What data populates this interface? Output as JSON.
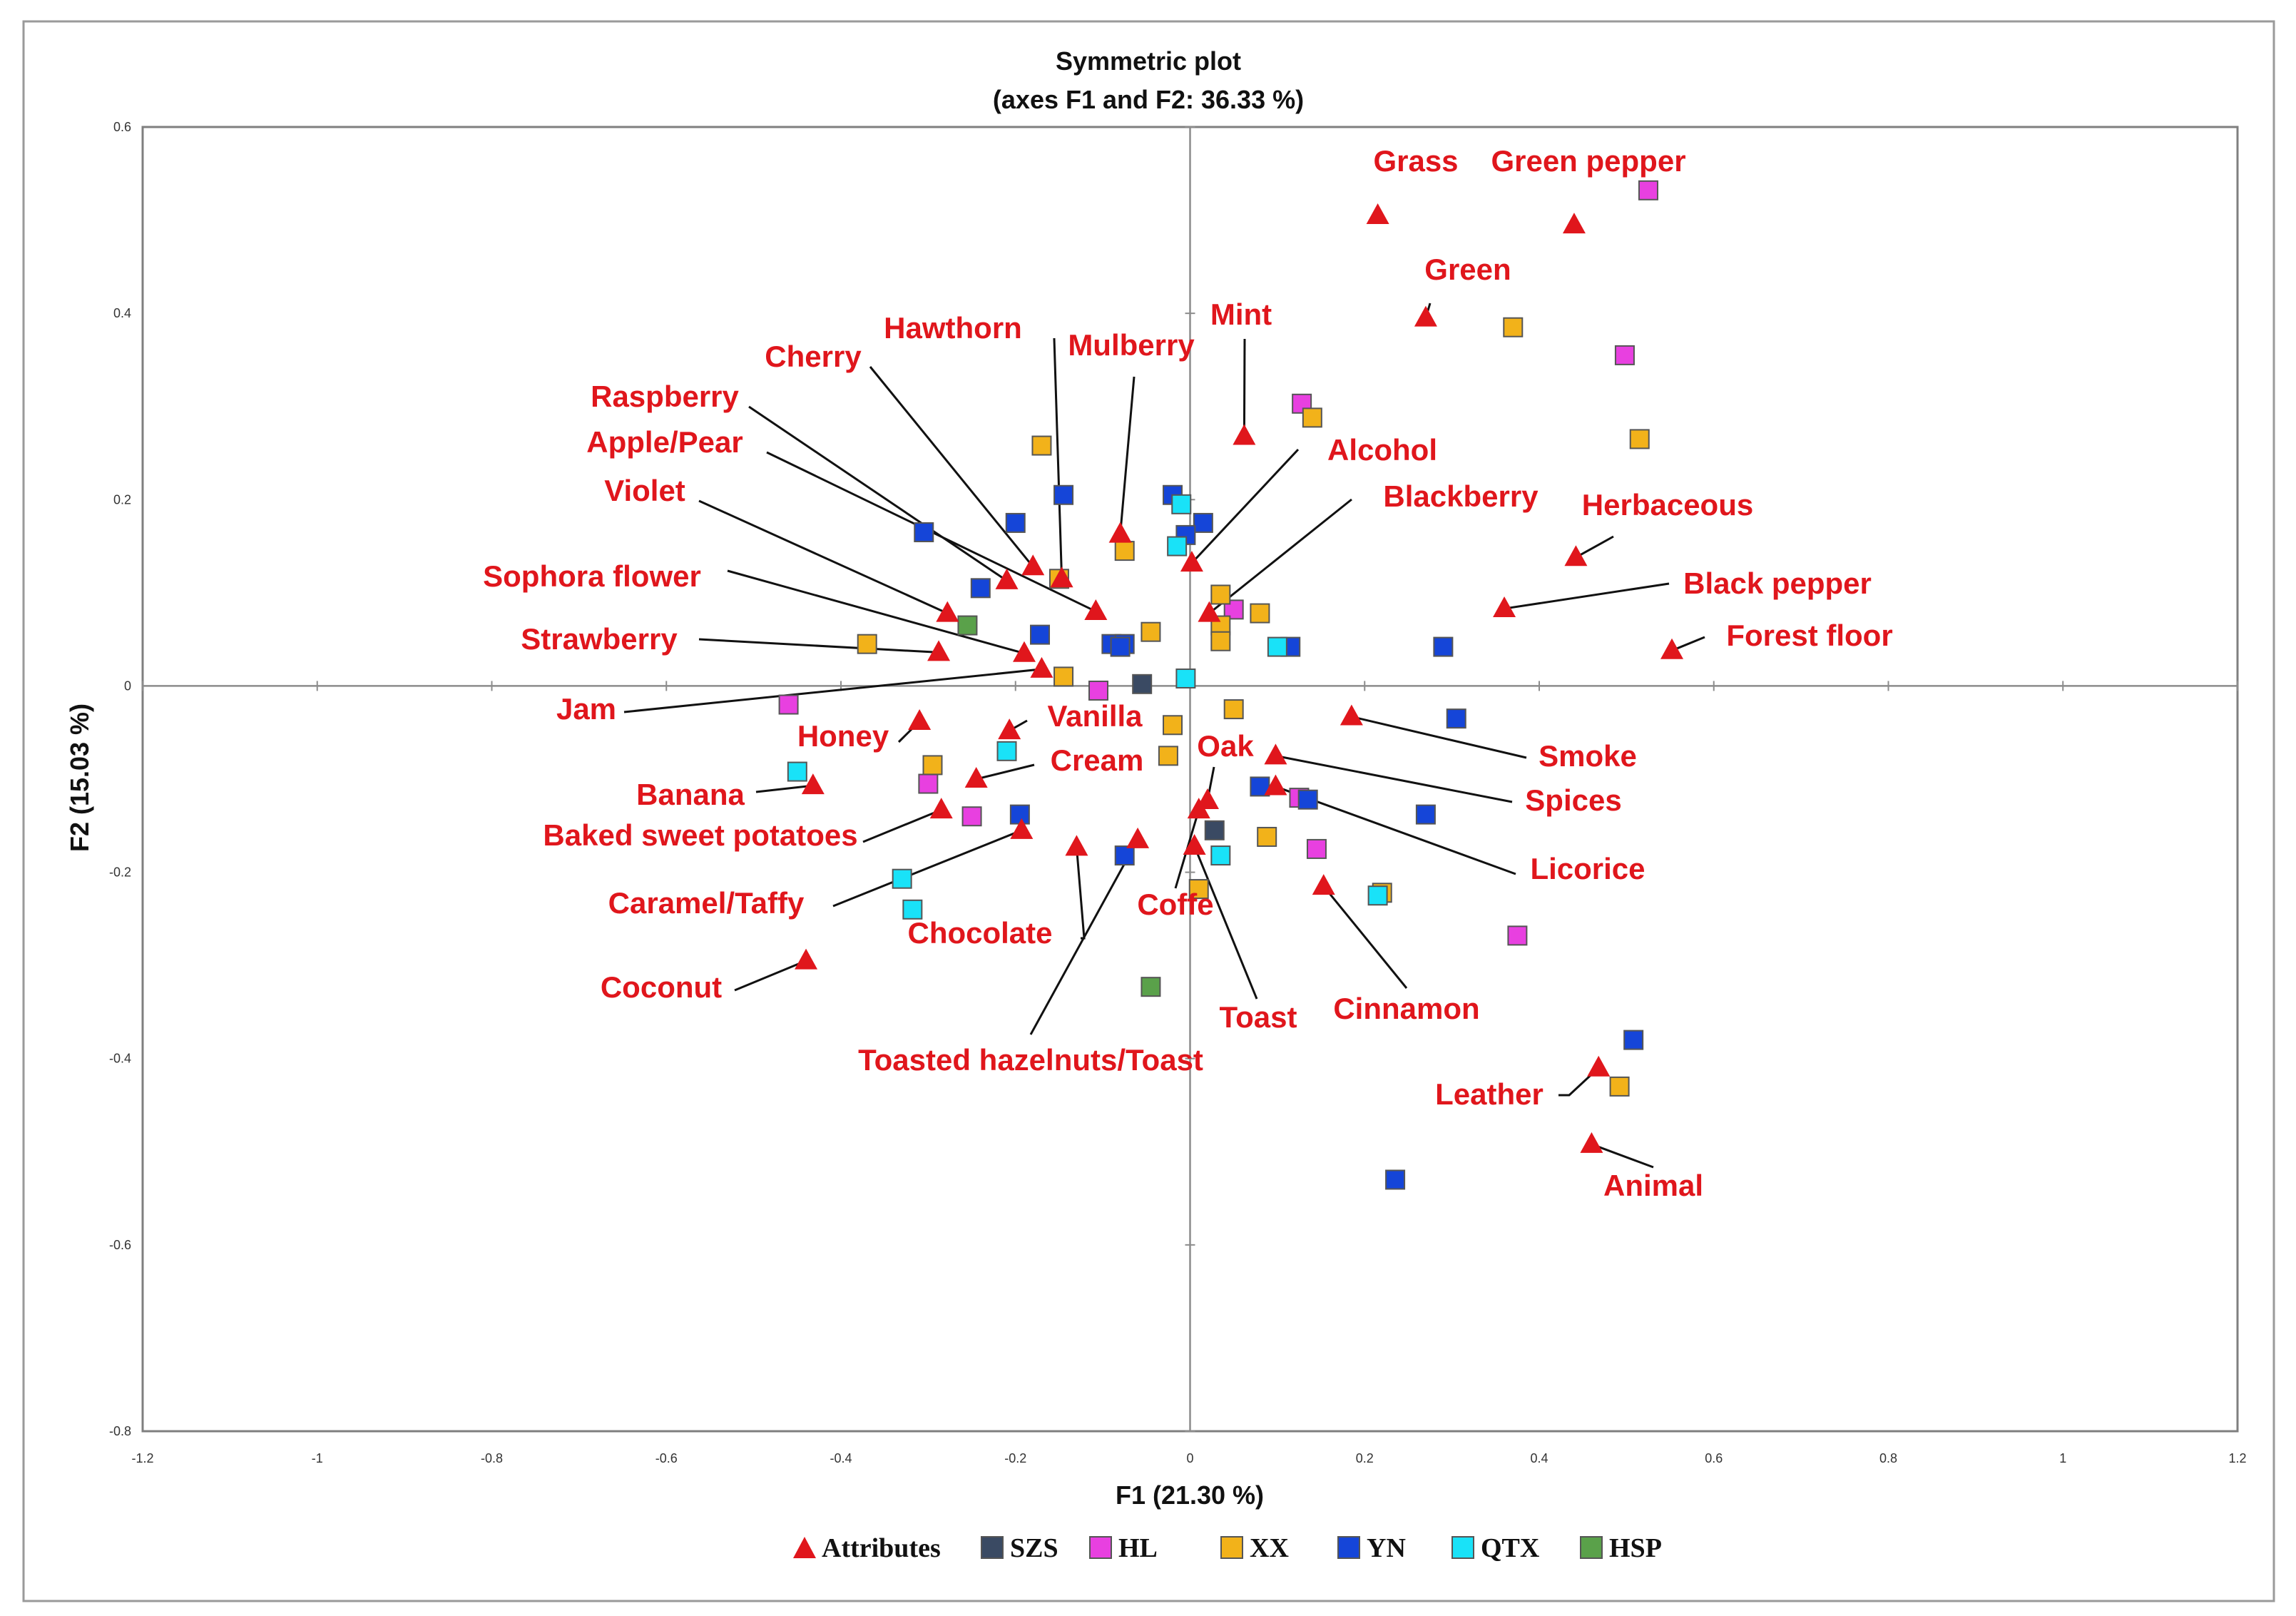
{
  "chart_data": {
    "type": "scatter",
    "title": "Symmetric plot",
    "subtitle": "(axes F1 and F2: 36.33 %)",
    "xlabel": "F1 (21.30 %)",
    "ylabel": "F2 (15.03 %)",
    "xlim": [
      -1.2,
      1.2
    ],
    "ylim": [
      -0.8,
      0.6
    ],
    "xticks": [
      "-1.2",
      "-1",
      "-0.8",
      "-0.6",
      "-0.4",
      "-0.2",
      "0",
      "0.2",
      "0.4",
      "0.6",
      "0.8",
      "1",
      "1.2"
    ],
    "yticks": [
      "-0.8",
      "-0.6",
      "-0.4",
      "-0.2",
      "0",
      "0.2",
      "0.4",
      "0.6"
    ],
    "grid": false,
    "legend_position": "bottom",
    "legend": [
      {
        "label": "Attributes",
        "marker": "triangle",
        "color": "#e0161c"
      },
      {
        "label": "SZS",
        "marker": "square",
        "color": "#3a4a63"
      },
      {
        "label": "HL",
        "marker": "square",
        "color": "#e840e0"
      },
      {
        "label": "XX",
        "marker": "square",
        "color": "#f2b21a"
      },
      {
        "label": "YN",
        "marker": "square",
        "color": "#1545d8"
      },
      {
        "label": "QTX",
        "marker": "square",
        "color": "#19e2f8"
      },
      {
        "label": "HSP",
        "marker": "square",
        "color": "#5aa14a"
      }
    ],
    "attributes": [
      {
        "name": "Grass",
        "x": 0.215,
        "y": 0.505
      },
      {
        "name": "Green pepper",
        "x": 0.44,
        "y": 0.495
      },
      {
        "name": "Green",
        "x": 0.27,
        "y": 0.395
      },
      {
        "name": "Mint",
        "x": 0.062,
        "y": 0.268
      },
      {
        "name": "Hawthorn",
        "x": -0.147,
        "y": 0.115
      },
      {
        "name": "Mulberry",
        "x": -0.08,
        "y": 0.163
      },
      {
        "name": "Cherry",
        "x": -0.18,
        "y": 0.128
      },
      {
        "name": "Raspberry",
        "x": -0.21,
        "y": 0.113
      },
      {
        "name": "Apple/Pear",
        "x": -0.108,
        "y": 0.08
      },
      {
        "name": "Violet",
        "x": -0.278,
        "y": 0.078
      },
      {
        "name": "Alcohol",
        "x": 0.002,
        "y": 0.132
      },
      {
        "name": "Blackberry",
        "x": 0.022,
        "y": 0.078
      },
      {
        "name": "Herbaceous",
        "x": 0.442,
        "y": 0.138
      },
      {
        "name": "Black pepper",
        "x": 0.36,
        "y": 0.083
      },
      {
        "name": "Forest floor",
        "x": 0.552,
        "y": 0.038
      },
      {
        "name": "Sophora flower",
        "x": -0.19,
        "y": 0.035
      },
      {
        "name": "Strawberry",
        "x": -0.288,
        "y": 0.036
      },
      {
        "name": "Jam",
        "x": -0.17,
        "y": 0.018
      },
      {
        "name": "Honey",
        "x": -0.31,
        "y": -0.038
      },
      {
        "name": "Vanilla",
        "x": -0.207,
        "y": -0.048
      },
      {
        "name": "Cream",
        "x": -0.245,
        "y": -0.1
      },
      {
        "name": "Banana",
        "x": -0.432,
        "y": -0.107
      },
      {
        "name": "Baked sweet potatoes",
        "x": -0.285,
        "y": -0.133
      },
      {
        "name": "Caramel/Taffy",
        "x": -0.193,
        "y": -0.155
      },
      {
        "name": "Chocolate",
        "x": -0.13,
        "y": -0.173
      },
      {
        "name": "Toasted hazelnuts/Toast",
        "x": -0.06,
        "y": -0.165
      },
      {
        "name": "Oak",
        "x": 0.02,
        "y": -0.123
      },
      {
        "name": "Coffe",
        "x": 0.01,
        "y": -0.133
      },
      {
        "name": "Toast",
        "x": 0.005,
        "y": -0.172
      },
      {
        "name": "Smoke",
        "x": 0.185,
        "y": -0.033
      },
      {
        "name": "Spices",
        "x": 0.098,
        "y": -0.075
      },
      {
        "name": "Licorice",
        "x": 0.098,
        "y": -0.108
      },
      {
        "name": "Cinnamon",
        "x": 0.153,
        "y": -0.215
      },
      {
        "name": "Coconut",
        "x": -0.44,
        "y": -0.295
      },
      {
        "name": "Leather",
        "x": 0.468,
        "y": -0.41
      },
      {
        "name": "Animal",
        "x": 0.46,
        "y": -0.492
      }
    ],
    "series": [
      {
        "name": "SZS",
        "values": [
          [
            -0.055,
            0.002
          ],
          [
            0.028,
            -0.155
          ]
        ]
      },
      {
        "name": "HL",
        "values": [
          [
            0.525,
            0.532
          ],
          [
            0.498,
            0.355
          ],
          [
            0.128,
            0.303
          ],
          [
            0.05,
            0.082
          ],
          [
            -0.105,
            -0.005
          ],
          [
            -0.46,
            -0.02
          ],
          [
            -0.3,
            -0.105
          ],
          [
            -0.25,
            -0.14
          ],
          [
            0.125,
            -0.12
          ],
          [
            0.145,
            -0.175
          ],
          [
            0.375,
            -0.268
          ]
        ]
      },
      {
        "name": "XX",
        "values": [
          [
            0.37,
            0.385
          ],
          [
            0.515,
            0.265
          ],
          [
            0.14,
            0.288
          ],
          [
            -0.17,
            0.258
          ],
          [
            -0.075,
            0.145
          ],
          [
            -0.15,
            0.115
          ],
          [
            0.035,
            0.098
          ],
          [
            0.035,
            0.065
          ],
          [
            0.035,
            0.048
          ],
          [
            0.08,
            0.078
          ],
          [
            -0.045,
            0.058
          ],
          [
            -0.37,
            0.045
          ],
          [
            -0.145,
            0.01
          ],
          [
            -0.02,
            -0.042
          ],
          [
            0.05,
            -0.025
          ],
          [
            -0.025,
            -0.075
          ],
          [
            -0.295,
            -0.085
          ],
          [
            0.088,
            -0.162
          ],
          [
            0.01,
            -0.218
          ],
          [
            0.22,
            -0.222
          ],
          [
            0.492,
            -0.43
          ]
        ]
      },
      {
        "name": "YN",
        "values": [
          [
            -0.145,
            0.205
          ],
          [
            -0.02,
            0.205
          ],
          [
            -0.2,
            0.175
          ],
          [
            0.015,
            0.175
          ],
          [
            -0.305,
            0.165
          ],
          [
            -0.005,
            0.162
          ],
          [
            -0.24,
            0.105
          ],
          [
            -0.172,
            0.055
          ],
          [
            -0.09,
            0.045
          ],
          [
            -0.075,
            0.045
          ],
          [
            -0.08,
            0.042
          ],
          [
            0.115,
            0.042
          ],
          [
            0.29,
            0.042
          ],
          [
            0.305,
            -0.035
          ],
          [
            0.08,
            -0.108
          ],
          [
            0.135,
            -0.122
          ],
          [
            -0.195,
            -0.138
          ],
          [
            0.27,
            -0.138
          ],
          [
            -0.075,
            -0.182
          ],
          [
            0.508,
            -0.38
          ],
          [
            0.235,
            -0.53
          ]
        ]
      },
      {
        "name": "QTX",
        "values": [
          [
            -0.01,
            0.195
          ],
          [
            -0.015,
            0.15
          ],
          [
            0.1,
            0.042
          ],
          [
            -0.005,
            0.008
          ],
          [
            -0.21,
            -0.07
          ],
          [
            -0.45,
            -0.092
          ],
          [
            0.035,
            -0.182
          ],
          [
            -0.33,
            -0.207
          ],
          [
            -0.318,
            -0.24
          ],
          [
            0.215,
            -0.225
          ]
        ]
      },
      {
        "name": "HSP",
        "values": [
          [
            -0.255,
            0.065
          ],
          [
            -0.045,
            -0.323
          ]
        ]
      }
    ]
  }
}
